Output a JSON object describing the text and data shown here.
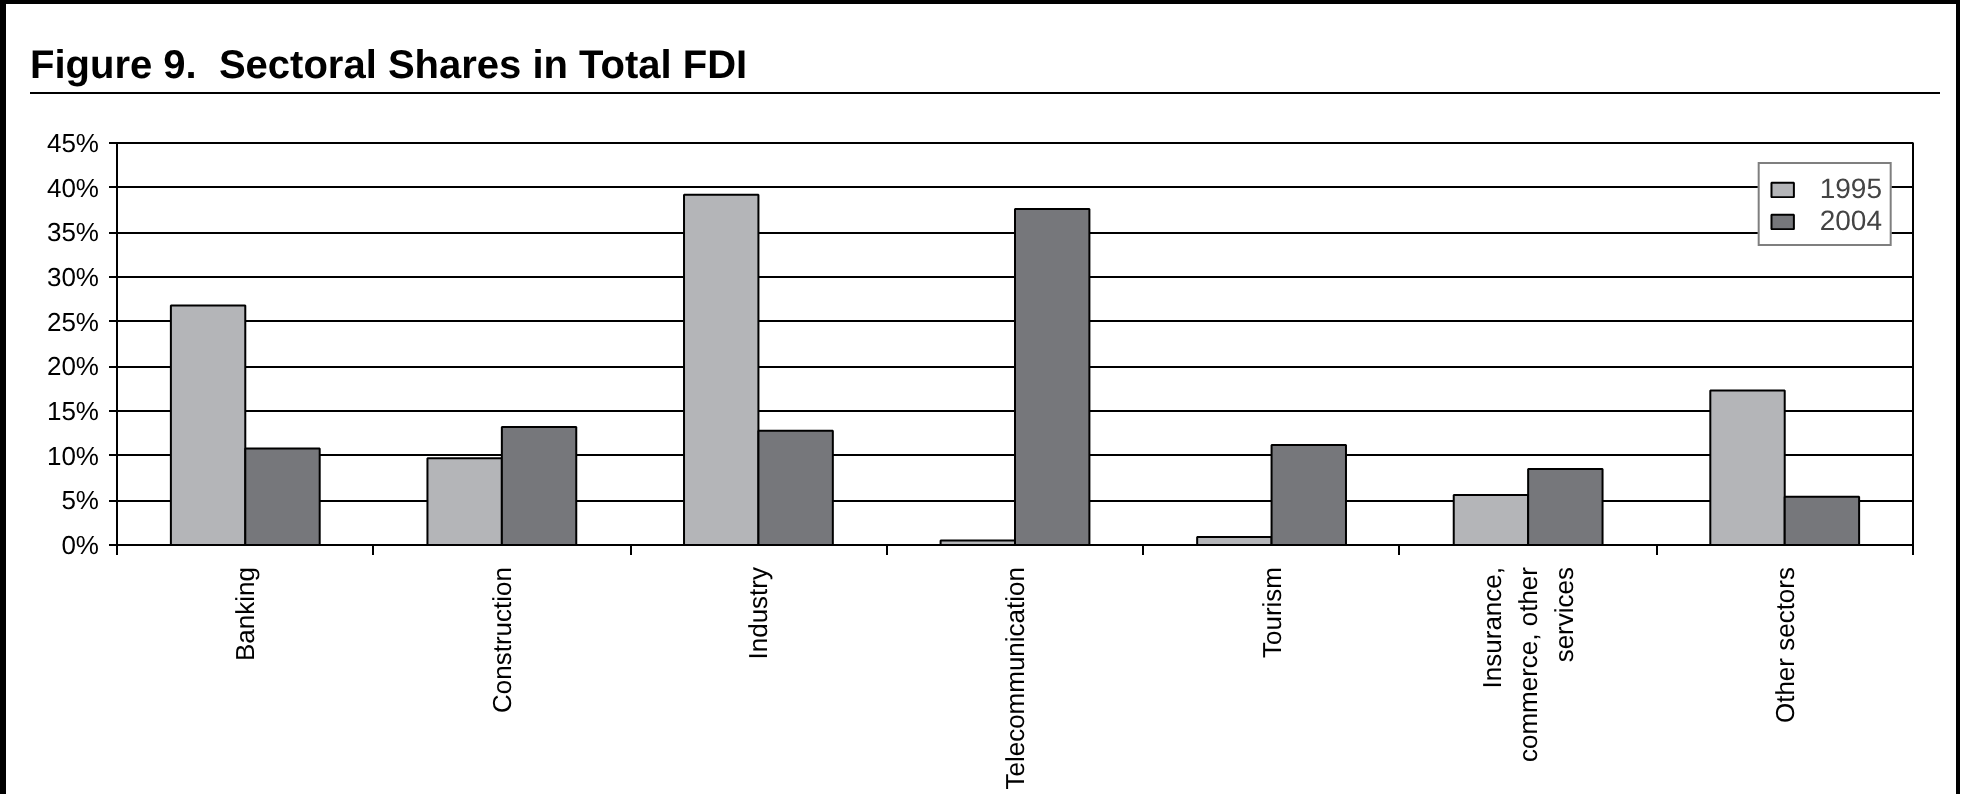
{
  "chart_data": {
    "type": "bar",
    "title": "Figure 9.  Sectoral Shares in Total FDI",
    "categories": [
      "Banking",
      "Construction",
      "Industry",
      "Telecommunication",
      "Tourism",
      "Insurance, commerce, other services",
      "Other sectors"
    ],
    "series": [
      {
        "name": "1995",
        "color": "#b4b5b8",
        "values": [
          26.8,
          9.7,
          39.2,
          0.5,
          0.9,
          5.6,
          17.3
        ]
      },
      {
        "name": "2004",
        "color": "#76777b",
        "values": [
          10.8,
          13.2,
          12.8,
          37.6,
          11.2,
          8.5,
          5.4
        ]
      }
    ],
    "ylim": [
      0,
      45
    ],
    "yticks": [
      {
        "value": 0,
        "label": "0%"
      },
      {
        "value": 5,
        "label": "5%"
      },
      {
        "value": 10,
        "label": "10%"
      },
      {
        "value": 15,
        "label": "15%"
      },
      {
        "value": 20,
        "label": "20%"
      },
      {
        "value": 25,
        "label": "25%"
      },
      {
        "value": 30,
        "label": "30%"
      },
      {
        "value": 35,
        "label": "35%"
      },
      {
        "value": 40,
        "label": "40%"
      },
      {
        "value": 45,
        "label": "45%"
      }
    ],
    "grid": "y",
    "legend": "top right"
  }
}
